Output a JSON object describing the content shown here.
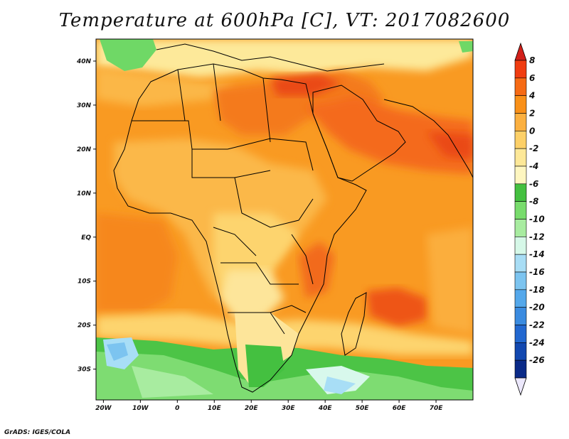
{
  "title": "Temperature at 600hPa [C], VT: 2017082600",
  "credit": "GrADS: IGES/COLA",
  "map": {
    "lon_range": [
      -22,
      80
    ],
    "lat_range": [
      -37,
      45
    ],
    "lon_ticks": [
      "20W",
      "10W",
      "0",
      "10E",
      "20E",
      "30E",
      "40E",
      "50E",
      "60E",
      "70E"
    ],
    "lon_tick_values": [
      -20,
      -10,
      0,
      10,
      20,
      30,
      40,
      50,
      60,
      70
    ],
    "lat_ticks": [
      "40N",
      "30N",
      "20N",
      "10N",
      "EQ",
      "10S",
      "20S",
      "30S"
    ],
    "lat_tick_values": [
      40,
      30,
      20,
      10,
      0,
      -10,
      -20,
      -30
    ]
  },
  "colorbar": {
    "labels": [
      "8",
      "6",
      "4",
      "2",
      "0",
      "-2",
      "-4",
      "-6",
      "-8",
      "-10",
      "-12",
      "-14",
      "-16",
      "-18",
      "-20",
      "-22",
      "-24",
      "-26"
    ],
    "colors": [
      "#f03c10",
      "#f66a14",
      "#f99018",
      "#fbb040",
      "#fdd068",
      "#fde898",
      "#fef6c0",
      "#44c040",
      "#78dc6c",
      "#a8eca0",
      "#d6f8e8",
      "#a8ddf5",
      "#7cc4f0",
      "#54a8eb",
      "#3a8be0",
      "#2268d0",
      "#1248b0",
      "#0a2a88"
    ],
    "top_arrow_color": "#d2201a",
    "bottom_arrow_color": "#ece8fc"
  }
}
